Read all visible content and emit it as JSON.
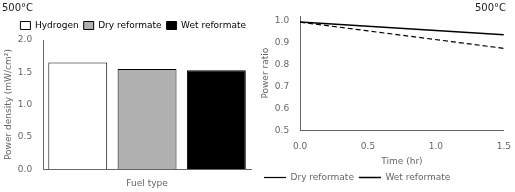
{
  "chart_data": [
    {
      "type": "bar",
      "title": "500°C",
      "xlabel": "Fuel type",
      "ylabel": "Power density (mW/cm²)",
      "categories": [
        "Hydrogen",
        "Dry reformate",
        "Wet reformate"
      ],
      "values": [
        1.65,
        1.55,
        1.53
      ],
      "colors": [
        "white",
        "#b0b0b0",
        "black"
      ],
      "ylim": [
        0,
        2
      ],
      "yticks": [
        {
          "value": 0,
          "label": "0.0"
        },
        0.5,
        {
          "value": 1,
          "label": "1.0"
        },
        1.5,
        {
          "value": 2,
          "label": "2.0"
        }
      ],
      "tick_labels": "y",
      "grid": false,
      "legend": "upper right"
    },
    {
      "type": "line",
      "title": "500°C",
      "xlabel": "Time (hr)",
      "ylabel": "Power ratio",
      "x": [
        0,
        1.5
      ],
      "series": [
        {
          "name": "Dry reformate",
          "color": "black",
          "line_style": "dashed",
          "values": [
            0.992,
            0.873
          ]
        },
        {
          "name": "Wet reformate",
          "color": "black",
          "line_style": "solid",
          "values": [
            0.993,
            0.935
          ]
        }
      ],
      "xlim": [
        0,
        1.5
      ],
      "xticks": [
        {
          "value": 0,
          "label": "0.0"
        },
        0.5,
        {
          "value": 1.0,
          "label": "1.0"
        },
        1.5
      ],
      "ylim": [
        0.5,
        1.02
      ],
      "yticks": [
        0.5,
        0.6,
        0.7,
        0.8,
        0.9,
        {
          "value": 1.0,
          "label": "1.0"
        }
      ],
      "grid": false,
      "legend": "lower left"
    }
  ]
}
